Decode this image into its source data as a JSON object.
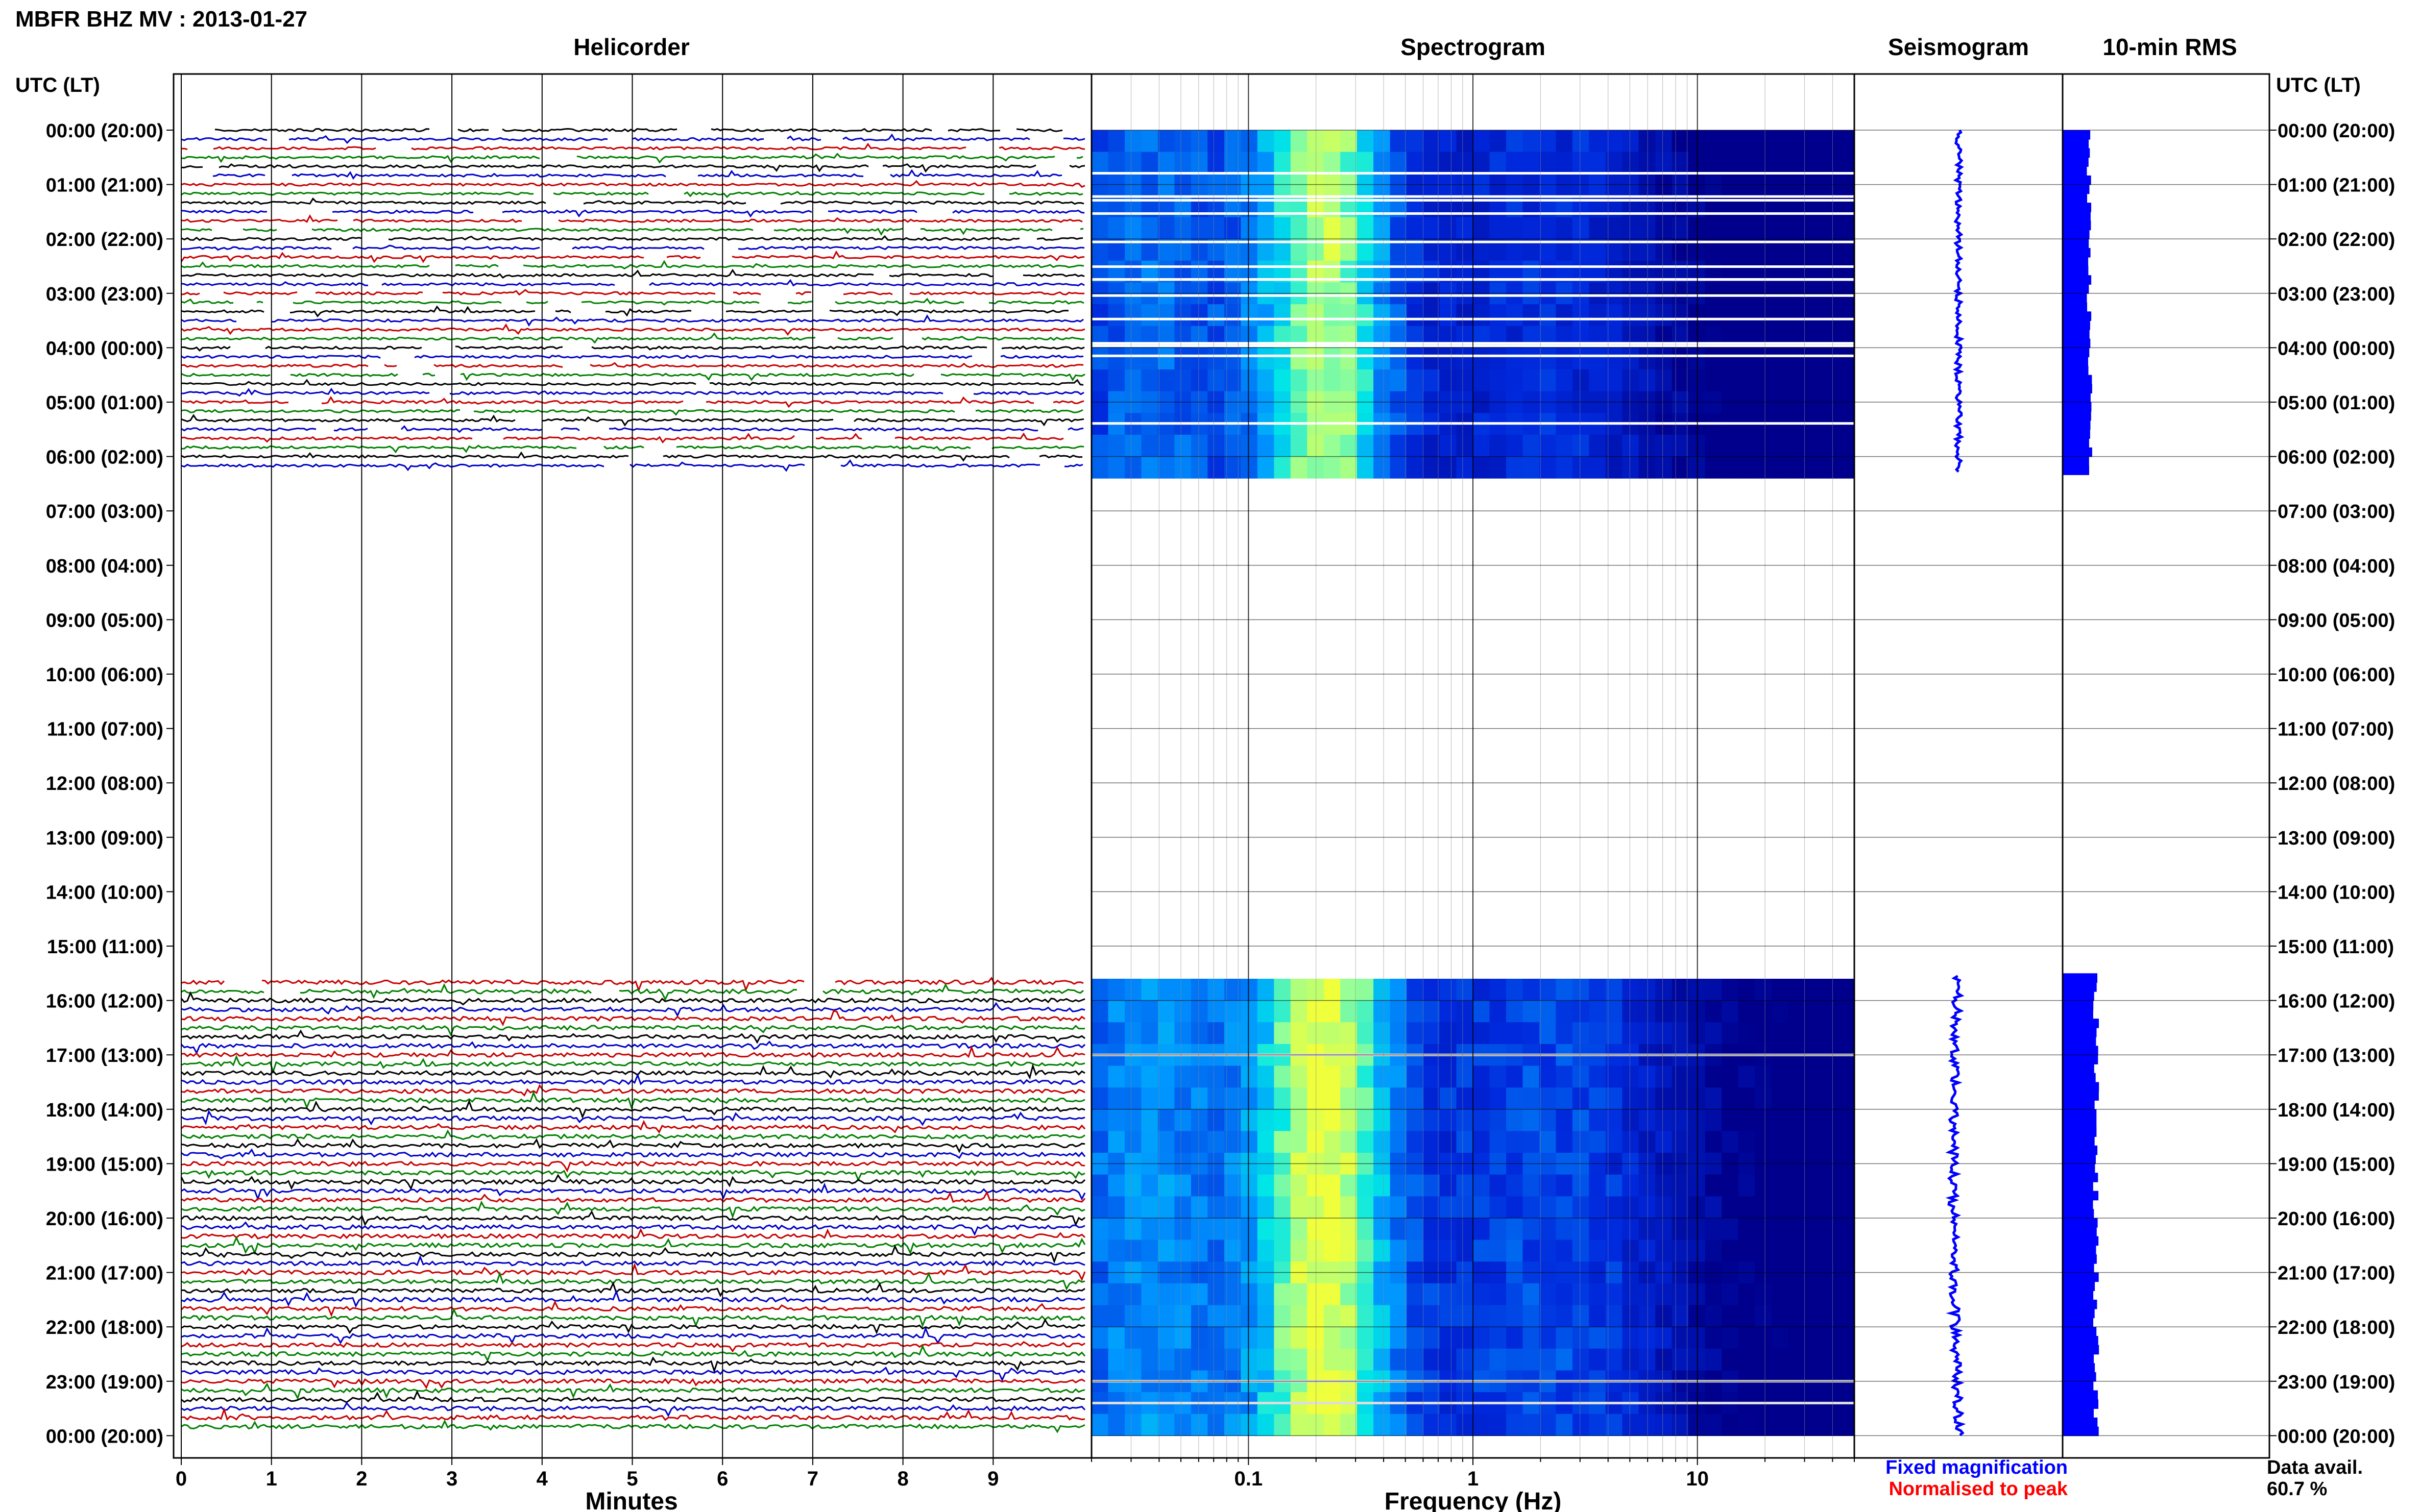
{
  "header": {
    "title": "MBFR BHZ MV : 2013-01-27",
    "utc_label": "UTC (LT)"
  },
  "panels": {
    "helicorder": "Helicorder",
    "spectrogram": "Spectrogram",
    "seismogram": "Seismogram",
    "rms": "10-min RMS"
  },
  "chart_data": {
    "type": "heatmap",
    "time_axis": {
      "labels": [
        "00:00 (20:00)",
        "01:00 (21:00)",
        "02:00 (22:00)",
        "03:00 (23:00)",
        "04:00 (00:00)",
        "05:00 (01:00)",
        "06:00 (02:00)",
        "07:00 (03:00)",
        "08:00 (04:00)",
        "09:00 (05:00)",
        "10:00 (06:00)",
        "11:00 (07:00)",
        "12:00 (08:00)",
        "13:00 (09:00)",
        "14:00 (10:00)",
        "15:00 (11:00)",
        "16:00 (12:00)",
        "17:00 (13:00)",
        "18:00 (14:00)",
        "19:00 (15:00)",
        "20:00 (16:00)",
        "21:00 (17:00)",
        "22:00 (18:00)",
        "23:00 (19:00)",
        "00:00 (20:00)"
      ],
      "range_hours": [
        0,
        24
      ],
      "data_segments_hours": [
        [
          0,
          6.3
        ],
        [
          15.55,
          24
        ]
      ]
    },
    "helicorder": {
      "xlabel": "Minutes",
      "ticks": [
        0,
        1,
        2,
        3,
        4,
        5,
        6,
        7,
        8,
        9
      ],
      "xlim": [
        0,
        10
      ],
      "trace_colors": [
        "#000000",
        "#0000c8",
        "#c80000",
        "#008000"
      ]
    },
    "spectrogram": {
      "xlabel": "Frequency (Hz)",
      "scale": "log",
      "xlim": [
        0.02,
        50
      ],
      "tick_labels": [
        "0.1",
        "1",
        "10"
      ],
      "peak_frequency_hz": 0.22
    },
    "seismogram": {
      "color": "#0000ff"
    },
    "rms": {
      "color": "#0000ff",
      "relative_levels": {
        "early_segment": 0.13,
        "late_segment": 0.16
      }
    },
    "legend": {
      "fixed": "Fixed magnification",
      "fixed_color": "#0000ff",
      "normalised": "Normalised to peak",
      "normalised_color": "#ff0000"
    },
    "data_availability": {
      "label": "Data avail.",
      "value": "60.7 %"
    }
  }
}
